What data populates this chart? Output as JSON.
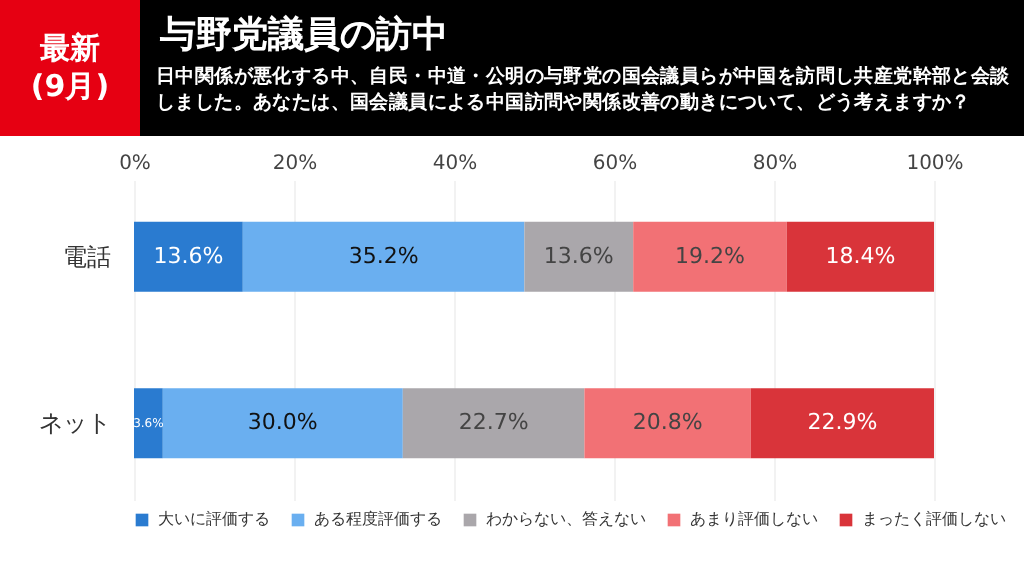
{
  "chart_data": {
    "type": "bar",
    "orientation": "horizontal",
    "stacked": true,
    "title": "与野党議員の訪中",
    "subtitle": "日中関係が悪化する中、自民・中道・公明の与野党の国会議員らが中国を訪問し共産党幹部と会談しました。あなたは、国会議員による中国訪問や関係改善の動きについて、どう考えますか？",
    "annotations": [
      "最新\n(9月)"
    ],
    "categories": [
      "電話",
      "ネット"
    ],
    "series": [
      {
        "name": "大いに評価する",
        "color": "#2a7bd0",
        "values": [
          13.6,
          3.6
        ],
        "value_labels": [
          "13.6%",
          "3.6%"
        ]
      },
      {
        "name": "ある程度評価する",
        "color": "#6aaff0",
        "values": [
          35.2,
          30.0
        ],
        "value_labels": [
          "35.2%",
          "30.0%"
        ]
      },
      {
        "name": "わからない、答えない",
        "color": "#aaa7ab",
        "values": [
          13.6,
          22.7
        ],
        "value_labels": [
          "13.6%",
          "22.7%"
        ]
      },
      {
        "name": "あまり評価しない",
        "color": "#f27175",
        "values": [
          19.2,
          20.8
        ],
        "value_labels": [
          "19.2%",
          "20.8%"
        ]
      },
      {
        "name": "まったく評価しない",
        "color": "#d9343a",
        "values": [
          18.4,
          22.9
        ],
        "value_labels": [
          "18.4%",
          "22.9%"
        ]
      }
    ],
    "xlim": [
      0,
      100
    ],
    "xticks": [
      {
        "value": 0,
        "label": "0%"
      },
      {
        "value": 20,
        "label": "20%"
      },
      {
        "value": 40,
        "label": "40%"
      },
      {
        "value": 60,
        "label": "60%"
      },
      {
        "value": 80,
        "label": "80%"
      },
      {
        "value": 100,
        "label": "100%"
      }
    ],
    "grid": "x",
    "legend": "bottom"
  }
}
